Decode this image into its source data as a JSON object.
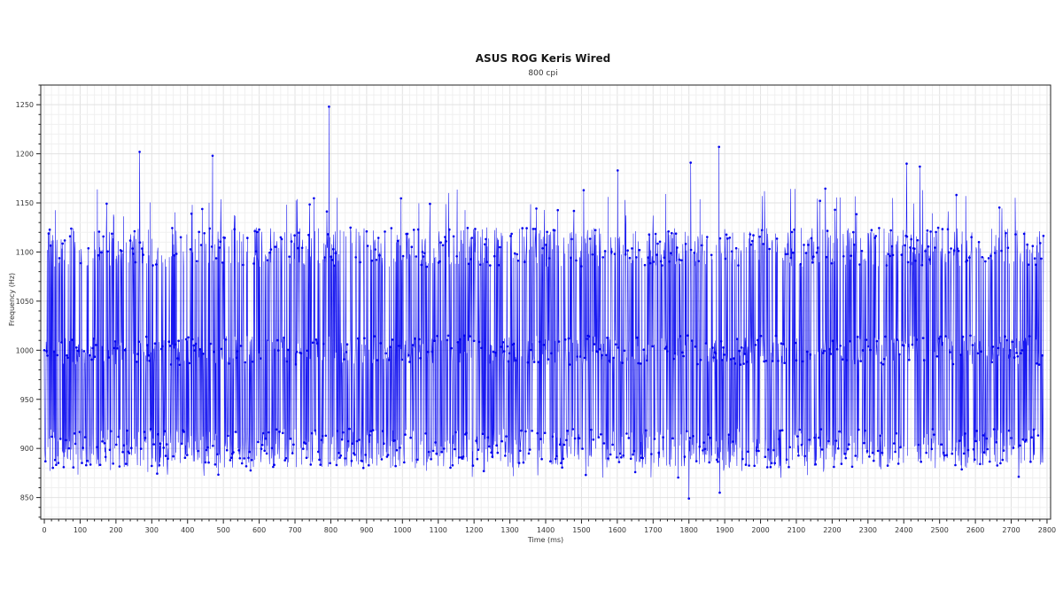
{
  "chart_data": {
    "type": "line",
    "title": "ASUS ROG Keris Wired",
    "subtitle": "800 cpi",
    "xlabel": "Time (ms)",
    "ylabel": "Frequency (Hz)",
    "xlim": [
      -10,
      2810
    ],
    "ylim": [
      828,
      1270
    ],
    "xticks": [
      0,
      100,
      200,
      300,
      400,
      500,
      600,
      700,
      800,
      900,
      1000,
      1100,
      1200,
      1300,
      1400,
      1500,
      1600,
      1700,
      1800,
      1900,
      2000,
      2100,
      2200,
      2300,
      2400,
      2500,
      2600,
      2700,
      2800
    ],
    "yticks": [
      850,
      900,
      950,
      1000,
      1050,
      1100,
      1150,
      1200,
      1250
    ],
    "grid": true,
    "legend": "none",
    "series": [
      {
        "color": "#0000ee",
        "note_x": "x values in ms",
        "x": [
          0,
          795,
          266,
          1884,
          2408,
          1805,
          470,
          1601,
          2445,
          1800,
          1886
        ],
        "y": [
          1000,
          1248,
          1202,
          1207,
          1190,
          1191,
          1198,
          1183,
          1187,
          849,
          855
        ]
      }
    ]
  }
}
